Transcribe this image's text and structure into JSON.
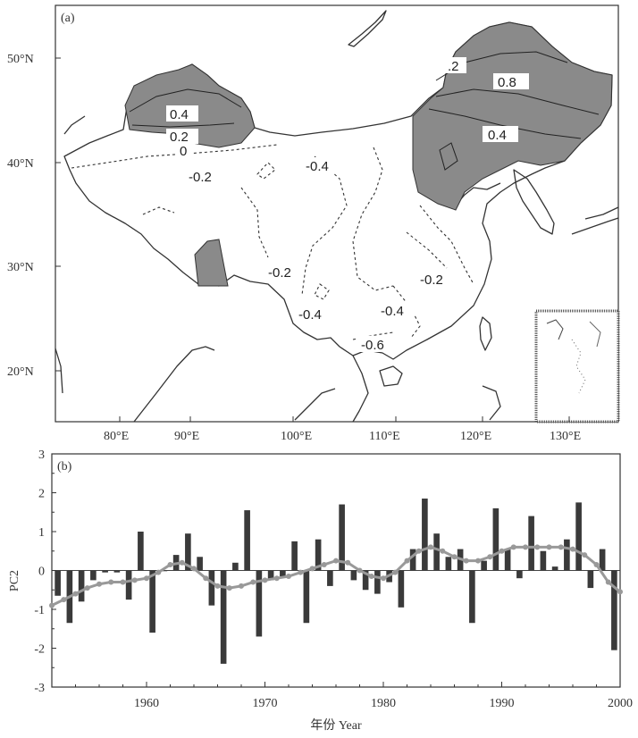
{
  "chart_data": [
    {
      "type": "map",
      "panel_label": "(a)",
      "x_ticks": [
        "80°E",
        "90°E",
        "100°E",
        "110°E",
        "120°E",
        "130°E"
      ],
      "y_ticks": [
        "20°N",
        "30°N",
        "40°N",
        "50°N"
      ],
      "contour_labels": {
        "positive": [
          "0.4",
          "0.2",
          "0",
          ".2",
          "0.8",
          "0.4"
        ],
        "negative": [
          "-0.2",
          "-0.4",
          "-0.2",
          "-0.2",
          "-0.4",
          "-0.4",
          "-0.6"
        ]
      }
    },
    {
      "type": "bar",
      "panel_label": "(b)",
      "ylabel": "PC2",
      "xlabel": "年份 Year",
      "xlim": [
        1952,
        2000
      ],
      "ylim": [
        -3,
        3
      ],
      "x_ticks": [
        "1960",
        "1970",
        "1980",
        "1990",
        "2000"
      ],
      "y_ticks": [
        "3",
        "2",
        "1",
        "0",
        "-1",
        "-2",
        "-3"
      ],
      "years": [
        1952,
        1953,
        1954,
        1955,
        1956,
        1957,
        1958,
        1959,
        1960,
        1961,
        1962,
        1963,
        1964,
        1965,
        1966,
        1967,
        1968,
        1969,
        1970,
        1971,
        1972,
        1973,
        1974,
        1975,
        1976,
        1977,
        1978,
        1979,
        1980,
        1981,
        1982,
        1983,
        1984,
        1985,
        1986,
        1987,
        1988,
        1989,
        1990,
        1991,
        1992,
        1993,
        1994,
        1995,
        1996,
        1997,
        1998,
        1999
      ],
      "values": [
        -0.65,
        -1.35,
        -0.8,
        -0.25,
        -0.05,
        -0.05,
        -0.75,
        1.0,
        -1.6,
        0.0,
        0.4,
        0.95,
        0.35,
        -0.9,
        -2.4,
        0.2,
        1.55,
        -1.7,
        -0.25,
        -0.15,
        0.75,
        -1.35,
        0.8,
        -0.4,
        1.7,
        -0.25,
        -0.5,
        -0.6,
        -0.3,
        -0.95,
        0.55,
        1.85,
        0.95,
        0.35,
        0.55,
        -1.35,
        0.25,
        1.6,
        0.55,
        -0.2,
        1.4,
        0.5,
        0.1,
        0.8,
        1.75,
        -0.45,
        0.55,
        -2.05
      ],
      "smooth_series": {
        "years": [
          1952,
          1953,
          1954,
          1955,
          1956,
          1957,
          1958,
          1959,
          1960,
          1961,
          1962,
          1963,
          1964,
          1965,
          1966,
          1967,
          1968,
          1969,
          1970,
          1971,
          1972,
          1973,
          1974,
          1975,
          1976,
          1977,
          1978,
          1979,
          1980,
          1981,
          1982,
          1983,
          1984,
          1985,
          1986,
          1987,
          1988,
          1989,
          1990,
          1991,
          1992,
          1993,
          1994,
          1995,
          1996,
          1997,
          1998,
          1999,
          2000
        ],
        "values": [
          -0.9,
          -0.75,
          -0.6,
          -0.45,
          -0.35,
          -0.3,
          -0.3,
          -0.25,
          -0.2,
          -0.05,
          0.15,
          0.2,
          0.05,
          -0.2,
          -0.4,
          -0.45,
          -0.4,
          -0.3,
          -0.25,
          -0.2,
          -0.15,
          -0.05,
          0.05,
          0.15,
          0.25,
          0.2,
          0.0,
          -0.15,
          -0.2,
          -0.05,
          0.25,
          0.5,
          0.6,
          0.5,
          0.35,
          0.25,
          0.25,
          0.35,
          0.5,
          0.6,
          0.6,
          0.6,
          0.6,
          0.6,
          0.55,
          0.4,
          0.15,
          -0.3,
          -0.55
        ]
      }
    }
  ]
}
